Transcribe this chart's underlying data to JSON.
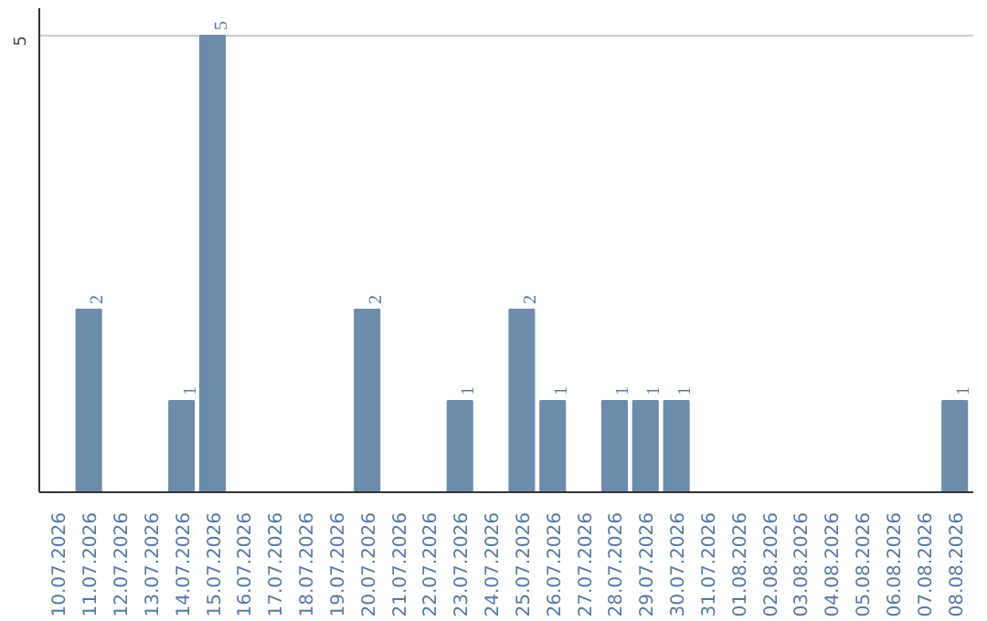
{
  "chart_data": {
    "type": "bar",
    "categories": [
      "10.07.2026",
      "11.07.2026",
      "12.07.2026",
      "13.07.2026",
      "14.07.2026",
      "15.07.2026",
      "16.07.2026",
      "17.07.2026",
      "18.07.2026",
      "19.07.2026",
      "20.07.2026",
      "21.07.2026",
      "22.07.2026",
      "23.07.2026",
      "24.07.2026",
      "25.07.2026",
      "26.07.2026",
      "27.07.2026",
      "28.07.2026",
      "29.07.2026",
      "30.07.2026",
      "31.07.2026",
      "01.08.2026",
      "02.08.2026",
      "03.08.2026",
      "04.08.2026",
      "05.08.2026",
      "06.08.2026",
      "07.08.2026",
      "08.08.2026"
    ],
    "values": [
      0,
      2,
      0,
      0,
      1,
      5,
      0,
      0,
      0,
      0,
      2,
      0,
      0,
      1,
      0,
      2,
      1,
      0,
      1,
      1,
      1,
      0,
      0,
      0,
      0,
      0,
      0,
      0,
      0,
      1
    ],
    "value_labels": [
      null,
      "2",
      null,
      null,
      "1",
      "5",
      null,
      null,
      null,
      null,
      "2",
      null,
      null,
      "1",
      null,
      "2",
      "1",
      null,
      "1",
      "1",
      "1",
      null,
      null,
      null,
      null,
      null,
      null,
      null,
      null,
      "1"
    ],
    "color": "#6b8cab",
    "ylim": [
      0,
      5.3
    ],
    "yticks": [
      5
    ],
    "grid": "y"
  }
}
